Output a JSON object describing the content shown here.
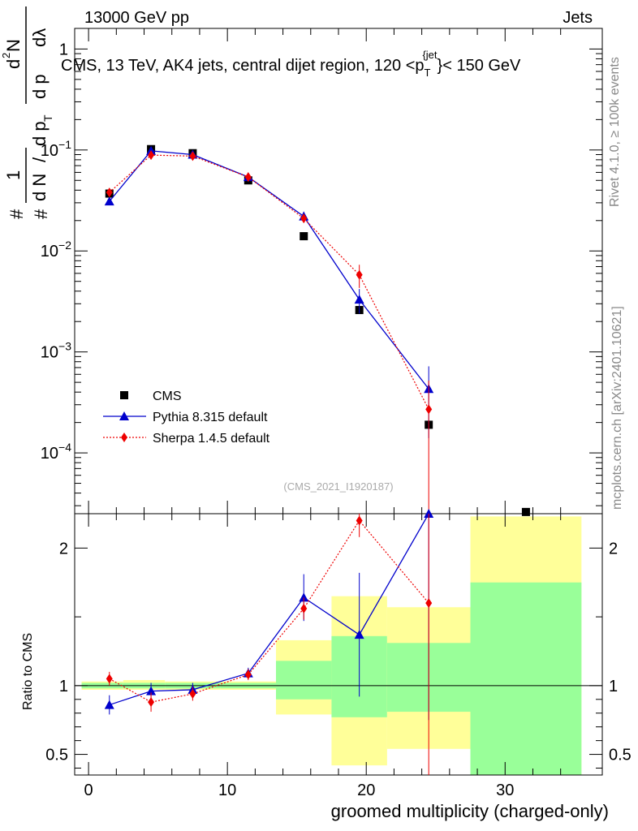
{
  "header": {
    "energy_label": "13000 GeV pp",
    "process_label": "Jets"
  },
  "side_labels": {
    "rivet": "Rivet 4.1.0, ≥ 100k events",
    "mcplots": "mcplots.cern.ch [arXiv:2401.10621]"
  },
  "colors": {
    "cms": "#000000",
    "pythia": "#0000cc",
    "sherpa": "#ee0000",
    "band_yellow": "#ffff99",
    "band_green": "#99ff99"
  },
  "chart_data": [
    {
      "type": "scatter",
      "panel": "main",
      "title": "CMS, 13 TeV, AK4 jets, central dijet region, 120 <p",
      "title_sub": "T",
      "title_sup": "{jet",
      "title_tail": "}< 150 GeV",
      "y_axis_title_parts": {
        "hash_num": "#",
        "one": "1",
        "hash_den": "#",
        "dN": "d N",
        "slash": "/",
        "dpT": "d p",
        "T": "T",
        "d2N": "d",
        "two": "2",
        "N": "N",
        "dpT2": "d p",
        "dlambda": "dλ"
      },
      "yscale": "log",
      "ylim": [
        2.5e-05,
        1.6
      ],
      "xlim": [
        -1,
        37
      ],
      "y_ticks": [
        {
          "value": 1,
          "base": "1",
          "exp": ""
        },
        {
          "value": 0.1,
          "base": "10",
          "exp": "−1"
        },
        {
          "value": 0.01,
          "base": "10",
          "exp": "−2"
        },
        {
          "value": 0.001,
          "base": "10",
          "exp": "−3"
        },
        {
          "value": 0.0001,
          "base": "10",
          "exp": "−4"
        }
      ],
      "watermark": "(CMS_2021_I1920187)",
      "legend": [
        {
          "key": "cms",
          "label": "CMS"
        },
        {
          "key": "pythia",
          "label": "Pythia 8.315 default"
        },
        {
          "key": "sherpa",
          "label": "Sherpa 1.4.5 default"
        }
      ],
      "series": [
        {
          "name": "CMS",
          "key": "cms",
          "x": [
            1.5,
            4.5,
            7.5,
            11.5,
            15.5,
            19.5,
            24.5,
            31.5
          ],
          "y": [
            0.037,
            0.102,
            0.093,
            0.05,
            0.014,
            0.0026,
            0.00019,
            2.6e-05
          ]
        },
        {
          "name": "Pythia 8.315 default",
          "key": "pythia",
          "x": [
            1.5,
            4.5,
            7.5,
            11.5,
            15.5,
            19.5,
            24.5
          ],
          "y": [
            0.031,
            0.098,
            0.09,
            0.054,
            0.022,
            0.0033,
            0.00043
          ],
          "err": [
            0.001,
            0.002,
            0.002,
            0.0015,
            0.0025,
            0.0009,
            0.00029
          ]
        },
        {
          "name": "Sherpa 1.4.5 default",
          "key": "sherpa",
          "x": [
            1.5,
            4.5,
            7.5,
            11.5,
            15.5,
            19.5,
            24.5
          ],
          "y": [
            0.038,
            0.089,
            0.087,
            0.054,
            0.021,
            0.0058,
            0.00027
          ],
          "err": [
            0.001,
            0.002,
            0.002,
            0.0015,
            0.002,
            0.0015,
            0.00025
          ]
        }
      ]
    },
    {
      "type": "scatter",
      "panel": "ratio",
      "ylabel": "Ratio to CMS",
      "xlabel": "groomed multiplicity (charged-only)",
      "xlim": [
        -1,
        37
      ],
      "ylim": [
        0.35,
        2.25
      ],
      "x_ticks": [
        0,
        10,
        20,
        30
      ],
      "y_ticks": [
        0.5,
        1,
        2
      ],
      "x_tick_labels": [
        "0",
        "10",
        "20",
        "30"
      ],
      "y_tick_labels": [
        "0.5",
        "1",
        "2"
      ],
      "bands": [
        {
          "x0": -0.5,
          "x1": 2.5,
          "yellow": [
            0.97,
            1.03
          ],
          "green": [
            0.98,
            1.02
          ]
        },
        {
          "x0": 2.5,
          "x1": 5.5,
          "yellow": [
            0.97,
            1.04
          ],
          "green": [
            0.98,
            1.02
          ]
        },
        {
          "x0": 5.5,
          "x1": 9.5,
          "yellow": [
            0.97,
            1.03
          ],
          "green": [
            0.98,
            1.02
          ]
        },
        {
          "x0": 9.5,
          "x1": 13.5,
          "yellow": [
            0.97,
            1.03
          ],
          "green": [
            0.98,
            1.02
          ]
        },
        {
          "x0": 13.5,
          "x1": 17.5,
          "yellow": [
            0.79,
            1.33
          ],
          "green": [
            0.9,
            1.18
          ]
        },
        {
          "x0": 17.5,
          "x1": 21.5,
          "yellow": [
            0.42,
            1.65
          ],
          "green": [
            0.77,
            1.36
          ]
        },
        {
          "x0": 21.5,
          "x1": 27.5,
          "yellow": [
            0.54,
            1.57
          ],
          "green": [
            0.81,
            1.31
          ]
        },
        {
          "x0": 27.5,
          "x1": 35.5,
          "yellow": [
            0.35,
            2.23
          ],
          "green": [
            0.35,
            1.75
          ]
        }
      ],
      "series": [
        {
          "name": "Pythia 8.315 default",
          "key": "pythia",
          "x": [
            1.5,
            4.5,
            7.5,
            11.5,
            15.5,
            19.5,
            24.5
          ],
          "y": [
            0.86,
            0.96,
            0.97,
            1.09,
            1.64,
            1.37,
            2.25
          ],
          "err": [
            0.07,
            0.06,
            0.05,
            0.04,
            0.17,
            0.45,
            1.5
          ]
        },
        {
          "name": "Sherpa 1.4.5 default",
          "key": "sherpa",
          "x": [
            1.5,
            4.5,
            7.5,
            11.5,
            15.5,
            19.5,
            24.5
          ],
          "y": [
            1.05,
            0.88,
            0.94,
            1.08,
            1.56,
            2.2,
            1.6
          ],
          "err": [
            0.05,
            0.07,
            0.05,
            0.04,
            0.08,
            0.12,
            1.5
          ]
        }
      ]
    }
  ]
}
